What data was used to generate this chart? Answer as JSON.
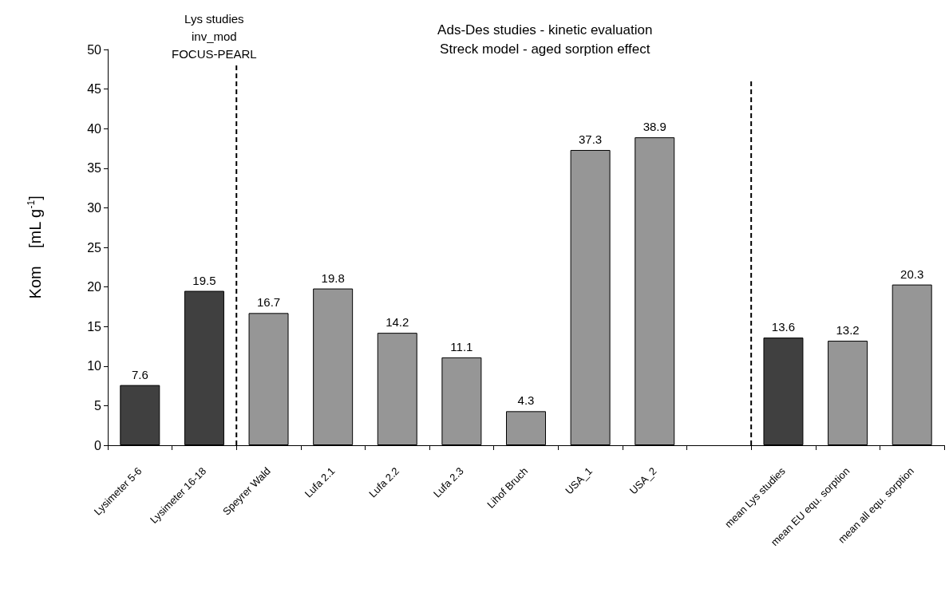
{
  "chart_data": {
    "type": "bar",
    "title": "Ads-Des studies - kinetic evaluation\nStreck model - aged sorption effect",
    "ylabel": "Kom    [mL g$^{-1}$]",
    "annotations": [
      "Lys studies\ninv_mod\nFOCUS-PEARL"
    ],
    "categories": [
      "Lysimeter 5-6",
      "Lysimeter 16-18",
      "Speyrer Wald",
      "Lufa 2.1",
      "Lufa 2.2",
      "Lufa 2.3",
      "Lihof Bruch",
      "USA_1",
      "USA_2",
      null,
      "mean Lys studies",
      "mean EU equ. sorption",
      "mean all equ. sorption"
    ],
    "values": [
      7.6,
      19.5,
      16.7,
      19.8,
      14.2,
      11.1,
      4.3,
      37.3,
      38.9,
      null,
      13.6,
      13.2,
      20.3
    ],
    "colors": [
      "#404040",
      "#404040",
      "#969696",
      "#969696",
      "#969696",
      "#969696",
      "#969696",
      "#969696",
      "#969696",
      "#969696",
      "#404040",
      "#969696",
      "#969696"
    ],
    "ylim": [
      0,
      50
    ],
    "yticks": [
      0,
      5,
      10,
      15,
      20,
      25,
      30,
      35,
      40,
      45,
      50
    ],
    "data_labels": true,
    "grid": false
  }
}
